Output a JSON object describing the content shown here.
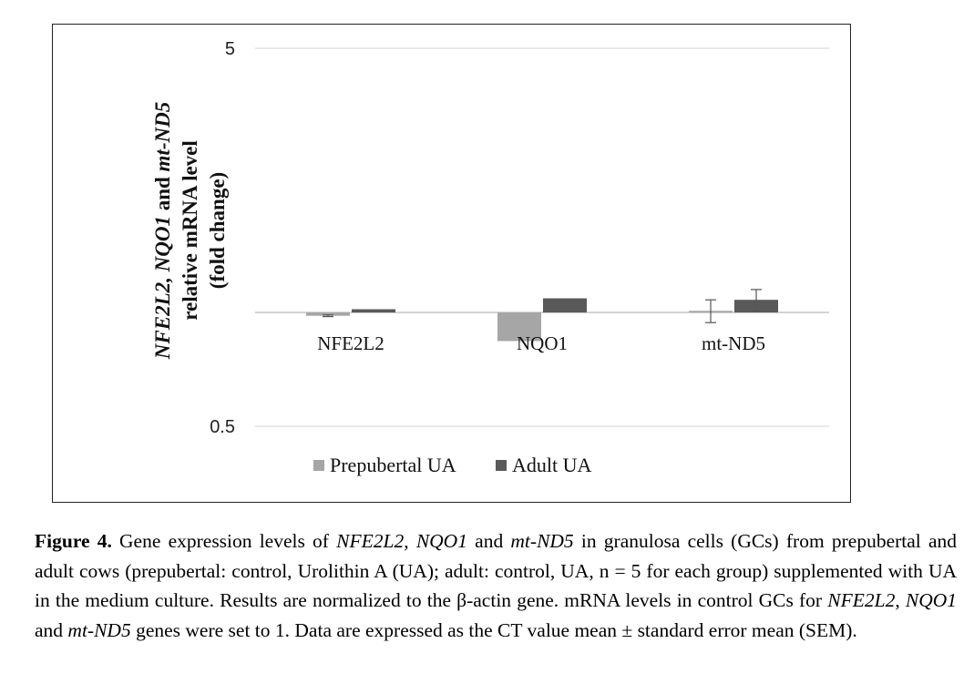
{
  "chart_data": {
    "type": "bar",
    "categories": [
      "NFE2L2",
      "NQO1",
      "mt-ND5"
    ],
    "series": [
      {
        "name": "Prepubertal UA",
        "color": "#a6a6a6",
        "values": [
          0.98,
          0.84,
          1.01
        ],
        "error": [
          0.005,
          0.0,
          0.07
        ]
      },
      {
        "name": "Adult UA",
        "color": "#595959",
        "values": [
          1.02,
          1.09,
          1.08
        ],
        "error": [
          0.0,
          0.0,
          0.07
        ]
      }
    ],
    "yscale": "log",
    "ylim": [
      0.5,
      5
    ],
    "yticks": [
      "5",
      "0.5"
    ],
    "baseline": 1,
    "ylabel_lines": [
      [
        "NFE2L2, NQO1",
        " and ",
        "mt-ND5"
      ],
      [
        "relative mRNA level"
      ],
      [
        "(fold change)"
      ]
    ],
    "ylabel_italic": [
      [
        true,
        false,
        true
      ],
      [
        false
      ],
      [
        false
      ]
    ],
    "grid": true,
    "legend_position": "bottom"
  },
  "caption": {
    "label": "Figure 4.",
    "segments": [
      {
        "text": " Gene expression levels of ",
        "italic": false
      },
      {
        "text": "NFE2L2",
        "italic": true
      },
      {
        "text": ", ",
        "italic": false
      },
      {
        "text": "NQO1",
        "italic": true
      },
      {
        "text": " and ",
        "italic": false
      },
      {
        "text": "mt-ND5",
        "italic": true
      },
      {
        "text": " in granulosa cells (GCs) from prepubertal and adult cows (prepubertal: control, Urolithin A (UA); adult: control, UA, n = 5 for each group) supplemented with UA in the medium culture. Results are normalized to the β-actin gene. mRNA levels in control GCs for ",
        "italic": false
      },
      {
        "text": "NFE2L2",
        "italic": true
      },
      {
        "text": ", ",
        "italic": false
      },
      {
        "text": "NQO1",
        "italic": true
      },
      {
        "text": " and ",
        "italic": false
      },
      {
        "text": "mt-ND5",
        "italic": true
      },
      {
        "text": " genes were set to 1. Data are expressed as the CT value mean ± standard error mean (SEM).",
        "italic": false
      }
    ]
  }
}
